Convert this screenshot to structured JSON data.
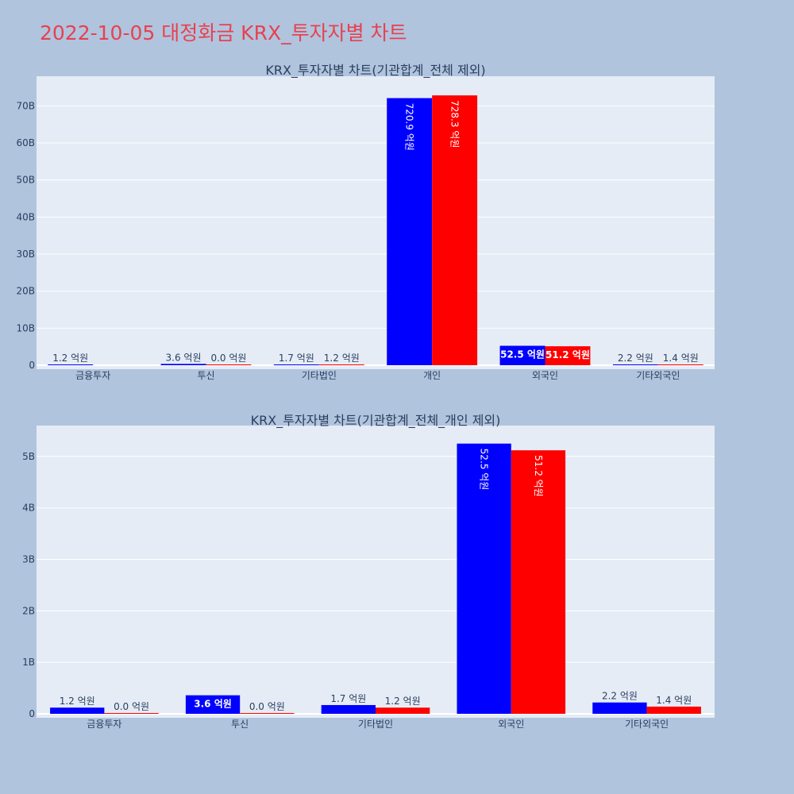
{
  "page_title": "2022-10-05 대정화금 KRX_투자자별 차트",
  "colors": {
    "buy": "#0000ff",
    "sell": "#ff0000",
    "plot_bg": "#e5ecf6",
    "page_bg": "#b0c4de",
    "title": "#e8414f"
  },
  "chart_data": [
    {
      "type": "bar",
      "title": "KRX_투자자별 차트(기관합계_전체 제외)",
      "categories": [
        "금융투자",
        "투신",
        "기타법인",
        "개인",
        "외국인",
        "기타외국인"
      ],
      "series": [
        {
          "values": [
            120000000,
            360000000,
            170000000,
            72090000000,
            5250000000,
            220000000
          ],
          "labels": [
            "1.2 억원",
            "3.6 억원",
            "1.7 억원",
            "720.9 억원",
            "52.5 억원",
            "2.2 억원"
          ]
        },
        {
          "values": [
            null,
            0,
            120000000,
            72830000000,
            5120000000,
            140000000
          ],
          "labels": [
            null,
            "0.0 억원",
            "1.2 억원",
            "728.3 억원",
            "51.2 억원",
            "1.4 억원"
          ]
        }
      ],
      "yticks": [
        "0",
        "10B",
        "20B",
        "30B",
        "40B",
        "50B",
        "60B",
        "70B"
      ],
      "ylim": [
        0,
        78000000000
      ]
    },
    {
      "type": "bar",
      "title": "KRX_투자자별 차트(기관합계_전체_개인 제외)",
      "categories": [
        "금융투자",
        "투신",
        "기타법인",
        "외국인",
        "기타외국인"
      ],
      "series": [
        {
          "values": [
            120000000,
            360000000,
            170000000,
            5250000000,
            220000000
          ],
          "labels": [
            "1.2 억원",
            "3.6 억원",
            "1.7 억원",
            "52.5 억원",
            "2.2 억원"
          ]
        },
        {
          "values": [
            0,
            0,
            120000000,
            5120000000,
            140000000
          ],
          "labels": [
            "0.0 억원",
            "0.0 억원",
            "1.2 억원",
            "51.2 억원",
            "1.4 억원"
          ]
        }
      ],
      "yticks": [
        "0",
        "1B",
        "2B",
        "3B",
        "4B",
        "5B"
      ],
      "ylim": [
        0,
        5600000000
      ]
    }
  ]
}
